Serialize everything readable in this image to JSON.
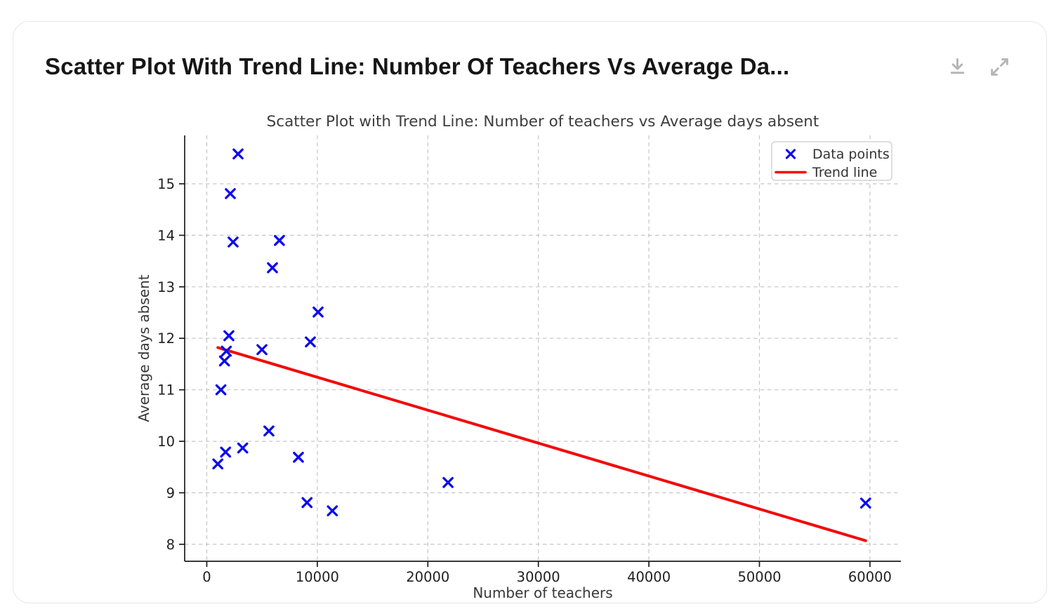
{
  "card": {
    "title": "Scatter Plot With Trend Line: Number Of Teachers Vs Average Da...",
    "actions": [
      {
        "name": "download",
        "icon": "download-icon"
      },
      {
        "name": "expand",
        "icon": "expand-icon"
      }
    ]
  },
  "chart_data": {
    "type": "scatter",
    "title": "Scatter Plot with Trend Line: Number of teachers vs Average days absent",
    "xlabel": "Number of teachers",
    "ylabel": "Average days absent",
    "xlim": [
      -2000,
      62800
    ],
    "ylim": [
      7.67,
      15.94
    ],
    "x_ticks": [
      0,
      10000,
      20000,
      30000,
      40000,
      50000,
      60000
    ],
    "y_ticks": [
      8,
      9,
      10,
      11,
      12,
      13,
      14,
      15
    ],
    "grid": true,
    "grid_style": "dashed",
    "legend_position": "upper right",
    "series": [
      {
        "name": "Data points",
        "type": "scatter",
        "marker": "x",
        "color": "#0b0bee",
        "points": [
          [
            1000,
            9.56
          ],
          [
            1280,
            11.0
          ],
          [
            1600,
            11.56
          ],
          [
            1700,
            9.79
          ],
          [
            1770,
            11.75
          ],
          [
            2000,
            12.05
          ],
          [
            2130,
            14.81
          ],
          [
            2380,
            13.87
          ],
          [
            2830,
            15.58
          ],
          [
            3250,
            9.87
          ],
          [
            4990,
            11.78
          ],
          [
            5620,
            10.2
          ],
          [
            5940,
            13.37
          ],
          [
            6570,
            13.9
          ],
          [
            8290,
            9.69
          ],
          [
            9070,
            8.81
          ],
          [
            9370,
            11.93
          ],
          [
            10070,
            12.51
          ],
          [
            11360,
            8.65
          ],
          [
            21830,
            9.2
          ],
          [
            59610,
            8.8
          ]
        ]
      },
      {
        "name": "Trend line",
        "type": "line",
        "color": "#f40606",
        "points": [
          [
            1000,
            11.82
          ],
          [
            59610,
            8.07
          ]
        ]
      }
    ],
    "legend_entries": [
      {
        "label": "Data points",
        "swatch": "x-marker",
        "color": "#0b0bee"
      },
      {
        "label": "Trend line",
        "swatch": "line",
        "color": "#f40606"
      }
    ]
  },
  "colors": {
    "marker_blue": "#0b0bee",
    "trend_red": "#f40606",
    "grid": "#c6c6c6",
    "spine": "#1c1c1c",
    "tick_label": "#1f1f1f",
    "axis_label": "#383838",
    "chart_title": "#3d3d3d",
    "legend_text": "#333333",
    "legend_border": "#cccccc",
    "card_border": "#e7e7e7",
    "header_icon": "#b6b6b6"
  }
}
